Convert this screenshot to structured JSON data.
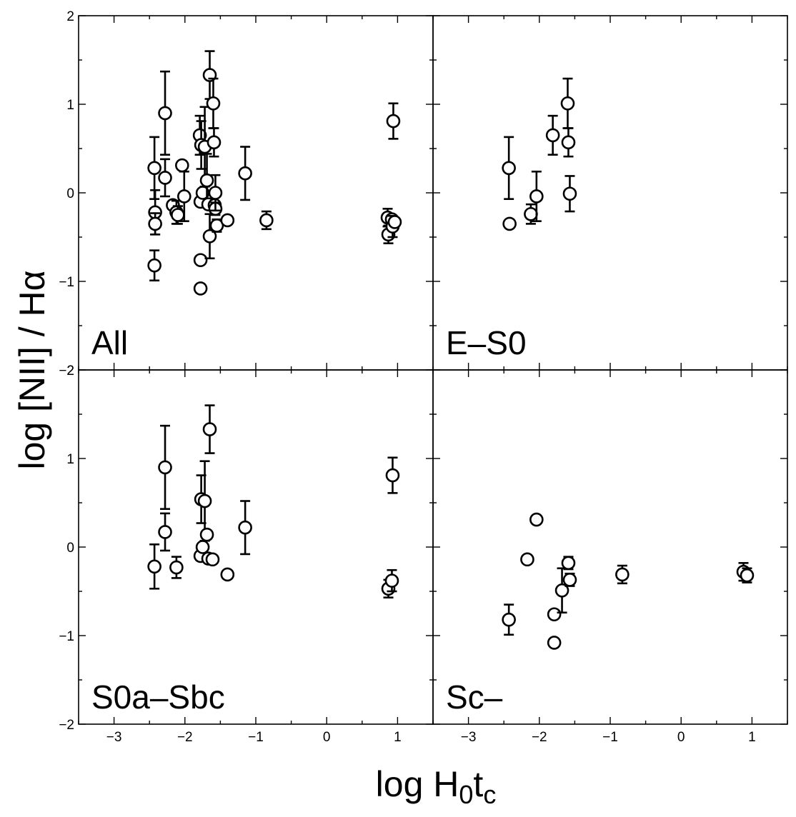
{
  "chart_data": {
    "type": "scatter",
    "layout": "2x2 panels, shared axes",
    "xlabel": "log H0tc",
    "ylabel": "log [NII] / Hα",
    "xlim": [
      -3.5,
      1.5
    ],
    "ylim": [
      -2,
      2
    ],
    "x_ticks": [
      -3,
      -2,
      -1,
      0,
      1
    ],
    "y_ticks": [
      -2,
      -1,
      0,
      1,
      2
    ],
    "x_tick_labels": [
      "−3",
      "−2",
      "−1",
      "0",
      "1"
    ],
    "y_tick_labels": [
      "−2",
      "−1",
      "0",
      "1",
      "2"
    ],
    "marker": "open circle",
    "panels": [
      {
        "label": "All",
        "points": [
          {
            "x": -2.43,
            "y": 0.28,
            "err": [
              0.35,
              0.35
            ]
          },
          {
            "x": -2.42,
            "y": -0.22,
            "err": [
              0.25,
              0.25
            ]
          },
          {
            "x": -2.42,
            "y": -0.35,
            "err": [
              0.12,
              0.12
            ]
          },
          {
            "x": -2.43,
            "y": -0.82,
            "err": [
              0.17,
              0.17
            ]
          },
          {
            "x": -2.28,
            "y": 0.9,
            "err": [
              0.47,
              0.47
            ]
          },
          {
            "x": -2.28,
            "y": 0.17,
            "err": [
              0.21,
              0.21
            ]
          },
          {
            "x": -2.17,
            "y": -0.14,
            "err": null
          },
          {
            "x": -2.12,
            "y": -0.22,
            "err": [
              0.13,
              0.13
            ]
          },
          {
            "x": -2.1,
            "y": -0.25,
            "err": [
              0.1,
              0.1
            ]
          },
          {
            "x": -2.04,
            "y": 0.31,
            "err": null
          },
          {
            "x": -2.01,
            "y": -0.04,
            "err": [
              0.28,
              0.28
            ]
          },
          {
            "x": -1.79,
            "y": 0.65,
            "err": [
              0.22,
              0.22
            ]
          },
          {
            "x": -1.77,
            "y": 0.54,
            "err": [
              0.27,
              0.27
            ]
          },
          {
            "x": -1.78,
            "y": -0.1,
            "err": null
          },
          {
            "x": -1.78,
            "y": -0.76,
            "err": null
          },
          {
            "x": -1.78,
            "y": -1.08,
            "err": null
          },
          {
            "x": -1.75,
            "y": 0.0,
            "err": null
          },
          {
            "x": -1.72,
            "y": 0.52,
            "err": [
              0.45,
              0.45
            ]
          },
          {
            "x": -1.69,
            "y": 0.14,
            "err": [
              0.3,
              0.3
            ]
          },
          {
            "x": -1.67,
            "y": -0.13,
            "err": null
          },
          {
            "x": -1.65,
            "y": -0.49,
            "err": [
              0.25,
              0.25
            ]
          },
          {
            "x": -1.65,
            "y": 1.33,
            "err": [
              0.27,
              0.27
            ]
          },
          {
            "x": -1.6,
            "y": 1.01,
            "err": [
              0.28,
              0.28
            ]
          },
          {
            "x": -1.59,
            "y": 0.57,
            "err": [
              0.16,
              0.16
            ]
          },
          {
            "x": -1.58,
            "y": -0.14,
            "err": null
          },
          {
            "x": -1.57,
            "y": -0.18,
            "err": [
              0.07,
              0.07
            ]
          },
          {
            "x": -1.57,
            "y": 0.0,
            "err": [
              0.2,
              0.2
            ]
          },
          {
            "x": -1.55,
            "y": -0.37,
            "err": [
              0.07,
              0.07
            ]
          },
          {
            "x": -1.4,
            "y": -0.31,
            "err": null
          },
          {
            "x": -1.15,
            "y": 0.22,
            "err": [
              0.3,
              0.3
            ]
          },
          {
            "x": -0.85,
            "y": -0.31,
            "err": [
              0.1,
              0.1
            ]
          },
          {
            "x": 0.86,
            "y": -0.28,
            "err": [
              0.1,
              0.1
            ]
          },
          {
            "x": 0.87,
            "y": -0.47,
            "err": [
              0.1,
              0.1
            ]
          },
          {
            "x": 0.92,
            "y": -0.3,
            "err": null
          },
          {
            "x": 0.93,
            "y": -0.38,
            "err": [
              0.12,
              0.12
            ]
          },
          {
            "x": 0.94,
            "y": 0.81,
            "err": [
              0.2,
              0.2
            ]
          },
          {
            "x": 0.96,
            "y": -0.33,
            "err": null
          }
        ]
      },
      {
        "label": "E–S0",
        "points": [
          {
            "x": -2.43,
            "y": 0.28,
            "err": [
              0.35,
              0.35
            ]
          },
          {
            "x": -2.42,
            "y": -0.35,
            "err": null
          },
          {
            "x": -2.12,
            "y": -0.24,
            "err": [
              0.11,
              0.11
            ]
          },
          {
            "x": -2.04,
            "y": -0.04,
            "err": [
              0.28,
              0.28
            ]
          },
          {
            "x": -1.81,
            "y": 0.65,
            "err": [
              0.22,
              0.22
            ]
          },
          {
            "x": -1.6,
            "y": 1.01,
            "err": [
              0.28,
              0.28
            ]
          },
          {
            "x": -1.59,
            "y": 0.57,
            "err": [
              0.16,
              0.16
            ]
          },
          {
            "x": -1.57,
            "y": -0.01,
            "err": [
              0.2,
              0.2
            ]
          }
        ]
      },
      {
        "label": "S0a–Sbc",
        "points": [
          {
            "x": -2.43,
            "y": -0.22,
            "err": [
              0.25,
              0.25
            ]
          },
          {
            "x": -2.28,
            "y": 0.9,
            "err": [
              0.47,
              0.47
            ]
          },
          {
            "x": -2.28,
            "y": 0.17,
            "err": [
              0.21,
              0.21
            ]
          },
          {
            "x": -2.12,
            "y": -0.23,
            "err": [
              0.12,
              0.12
            ]
          },
          {
            "x": -1.78,
            "y": -0.1,
            "err": null
          },
          {
            "x": -1.77,
            "y": 0.54,
            "err": [
              0.27,
              0.27
            ]
          },
          {
            "x": -1.75,
            "y": 0.0,
            "err": null
          },
          {
            "x": -1.72,
            "y": 0.52,
            "err": [
              0.45,
              0.45
            ]
          },
          {
            "x": -1.69,
            "y": 0.14,
            "err": null
          },
          {
            "x": -1.67,
            "y": -0.13,
            "err": null
          },
          {
            "x": -1.65,
            "y": 1.33,
            "err": [
              0.27,
              0.27
            ]
          },
          {
            "x": -1.61,
            "y": -0.14,
            "err": null
          },
          {
            "x": -1.4,
            "y": -0.31,
            "err": null
          },
          {
            "x": -1.15,
            "y": 0.22,
            "err": [
              0.3,
              0.3
            ]
          },
          {
            "x": 0.87,
            "y": -0.47,
            "err": [
              0.1,
              0.1
            ]
          },
          {
            "x": 0.92,
            "y": -0.38,
            "err": [
              0.12,
              0.12
            ]
          },
          {
            "x": 0.93,
            "y": 0.81,
            "err": [
              0.2,
              0.2
            ]
          }
        ]
      },
      {
        "label": "Sc–",
        "points": [
          {
            "x": -2.43,
            "y": -0.82,
            "err": [
              0.17,
              0.17
            ]
          },
          {
            "x": -2.17,
            "y": -0.14,
            "err": null
          },
          {
            "x": -2.04,
            "y": 0.31,
            "err": null
          },
          {
            "x": -1.79,
            "y": -0.76,
            "err": null
          },
          {
            "x": -1.79,
            "y": -1.08,
            "err": null
          },
          {
            "x": -1.68,
            "y": -0.49,
            "err": [
              0.25,
              0.25
            ]
          },
          {
            "x": -1.59,
            "y": -0.18,
            "err": [
              0.07,
              0.07
            ]
          },
          {
            "x": -1.57,
            "y": -0.37,
            "err": [
              0.07,
              0.07
            ]
          },
          {
            "x": -0.83,
            "y": -0.31,
            "err": [
              0.1,
              0.1
            ]
          },
          {
            "x": 0.88,
            "y": -0.28,
            "err": [
              0.1,
              0.1
            ]
          },
          {
            "x": 0.93,
            "y": -0.32,
            "err": [
              0.08,
              0.08
            ]
          }
        ]
      }
    ]
  }
}
